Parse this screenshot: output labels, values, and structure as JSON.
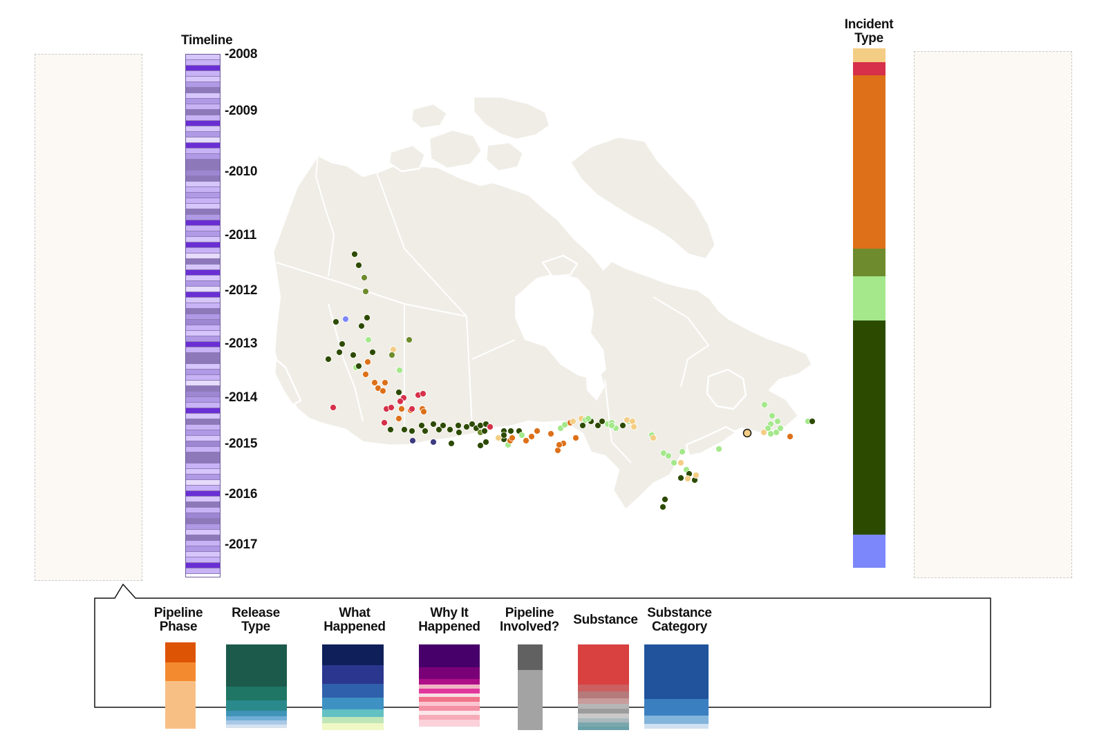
{
  "timeline": {
    "title": "Timeline",
    "years": [
      "-2008",
      "-2009",
      "-2010",
      "-2011",
      "-2012",
      "-2013",
      "-2014",
      "-2015",
      "-2016",
      "-2017"
    ]
  },
  "incident_type": {
    "title_line1": "Incident",
    "title_line2": "Type",
    "segments": [
      {
        "color": "#f4cd85",
        "share": 0.026
      },
      {
        "color": "#d6304a",
        "share": 0.025
      },
      {
        "color": "#dd7019",
        "share": 0.325
      },
      {
        "color": "#6e8b2d",
        "share": 0.052
      },
      {
        "color": "#a4e88b",
        "share": 0.084
      },
      {
        "color": "#2d4b00",
        "share": 0.402
      },
      {
        "color": "#7b87fa",
        "share": 0.062
      }
    ]
  },
  "legend": {
    "items": [
      {
        "line1": "Pipeline",
        "line2": "Phase",
        "segments": [
          {
            "color": "#dd5405",
            "share": 0.23
          },
          {
            "color": "#f48a30",
            "share": 0.22
          },
          {
            "color": "#f8bf85",
            "share": 0.55
          }
        ]
      },
      {
        "line1": "Release",
        "line2": "Type",
        "segments": [
          {
            "color": "#1c5a4c",
            "share": 0.5
          },
          {
            "color": "#1f7664",
            "share": 0.17
          },
          {
            "color": "#2a8a8b",
            "share": 0.12
          },
          {
            "color": "#3f94b8",
            "share": 0.07
          },
          {
            "color": "#71aed6",
            "share": 0.05
          },
          {
            "color": "#a9c8e6",
            "share": 0.05
          },
          {
            "color": "#d6e3f0",
            "share": 0.04
          }
        ]
      },
      {
        "line1": "What",
        "line2": "Happened",
        "segments": [
          {
            "color": "#0f1f59",
            "share": 0.24
          },
          {
            "color": "#2b368f",
            "share": 0.22
          },
          {
            "color": "#2f60ac",
            "share": 0.16
          },
          {
            "color": "#3e92c3",
            "share": 0.14
          },
          {
            "color": "#63c0c3",
            "share": 0.09
          },
          {
            "color": "#c0e6b8",
            "share": 0.07
          },
          {
            "color": "#f0f8c5",
            "share": 0.08
          }
        ]
      },
      {
        "line1": "Why It",
        "line2": "Happened",
        "segments": [
          {
            "color": "#470069",
            "share": 0.28
          },
          {
            "color": "#7a0077",
            "share": 0.14
          },
          {
            "color": "#ae0e87",
            "share": 0.07
          },
          {
            "color": "#f0b5c5",
            "share": 0.05
          },
          {
            "color": "#e1379c",
            "share": 0.06
          },
          {
            "color": "#f9dde4",
            "share": 0.04
          },
          {
            "color": "#f1738a",
            "share": 0.06
          },
          {
            "color": "#fbc5d0",
            "share": 0.05
          },
          {
            "color": "#f490a4",
            "share": 0.06
          },
          {
            "color": "#fde6ea",
            "share": 0.05
          },
          {
            "color": "#f7aab8",
            "share": 0.06
          },
          {
            "color": "#fbd2da",
            "share": 0.08
          }
        ]
      },
      {
        "line1": "Pipeline",
        "line2": "Involved?",
        "segments": [
          {
            "color": "#616161",
            "share": 0.3
          },
          {
            "color": "#a3a3a3",
            "share": 0.7
          }
        ]
      },
      {
        "line1": "Substance",
        "line2": "",
        "segments": [
          {
            "color": "#d94040",
            "share": 0.47
          },
          {
            "color": "#cc5f5f",
            "share": 0.08
          },
          {
            "color": "#b57a7a",
            "share": 0.08
          },
          {
            "color": "#c99c9c",
            "share": 0.06
          },
          {
            "color": "#b6b6b6",
            "share": 0.06
          },
          {
            "color": "#9c9c9c",
            "share": 0.06
          },
          {
            "color": "#c9c9c9",
            "share": 0.05
          },
          {
            "color": "#a9b9bd",
            "share": 0.05
          },
          {
            "color": "#7aa7ad",
            "share": 0.05
          },
          {
            "color": "#6aa0a8",
            "share": 0.04
          }
        ]
      },
      {
        "line1": "Substance",
        "line2": "Category",
        "segments": [
          {
            "color": "#21539c",
            "share": 0.65
          },
          {
            "color": "#3a7fc0",
            "share": 0.2
          },
          {
            "color": "#82b4dc",
            "share": 0.1
          },
          {
            "color": "#cfe1f0",
            "share": 0.05
          }
        ]
      }
    ]
  },
  "map": {
    "point_colors": {
      "dark_green": "#2d4b00",
      "olive": "#6e8b2d",
      "light_green": "#a4e88b",
      "orange": "#dd7019",
      "red": "#d6304a",
      "yellow": "#f4cd85",
      "blue": "#7b87fa",
      "navy": "#3d3a82"
    }
  }
}
